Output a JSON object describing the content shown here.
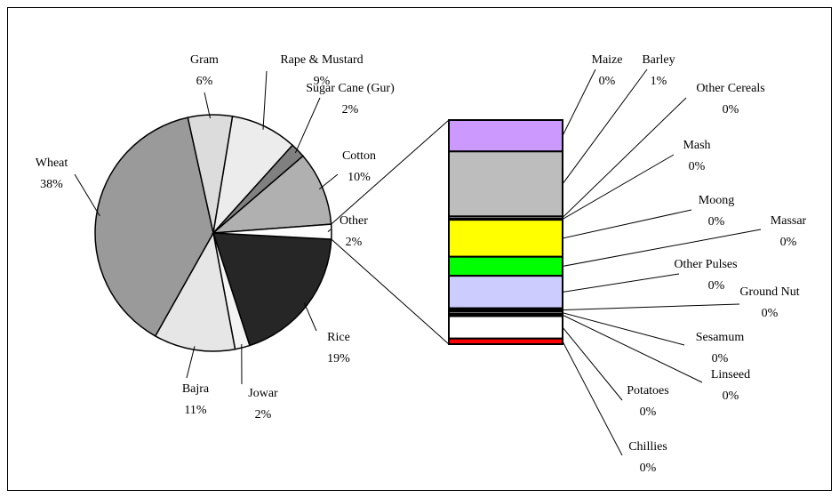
{
  "chart_data": {
    "type": "pie",
    "categories": [
      "Rice",
      "Jowar",
      "Bajra",
      "Wheat",
      "Gram",
      "Rape & Mustard",
      "Sugar Cane (Gur)",
      "Cotton",
      "Other"
    ],
    "values": [
      19,
      2,
      11,
      38,
      6,
      9,
      2,
      10,
      2
    ],
    "value_labels": [
      "19%",
      "2%",
      "11%",
      "38%",
      "6%",
      "9%",
      "2%",
      "10%",
      "2%"
    ],
    "colors": [
      "#262626",
      "#f4f4f4",
      "#e6e6e6",
      "#9a9a9a",
      "#dcdcdc",
      "#ececec",
      "#808080",
      "#b0b0b0",
      "#ffffff"
    ],
    "bar_of_pie": {
      "categories": [
        "Maize",
        "Barley",
        "Other Cereals",
        "Mash",
        "Moong",
        "Massar",
        "Other Pulses",
        "Ground Nut",
        "Sesamum",
        "Linseed",
        "Potatoes",
        "Chillies"
      ],
      "values": [
        0.28,
        0.58,
        0.02,
        0.01,
        0.33,
        0.17,
        0.29,
        0.03,
        0.02,
        0.02,
        0.2,
        0.05
      ],
      "value_labels": [
        "0%",
        "1%",
        "0%",
        "0%",
        "0%",
        "0%",
        "0%",
        "0%",
        "0%",
        "0%",
        "0%",
        "0%"
      ],
      "colors": [
        "#cc99ff",
        "#bdbdbd",
        "#ffffff",
        "#000000",
        "#ffff00",
        "#00ff00",
        "#ccccff",
        "#000000",
        "#dddddd",
        "#000000",
        "#ffffff",
        "#ff0000"
      ]
    }
  }
}
